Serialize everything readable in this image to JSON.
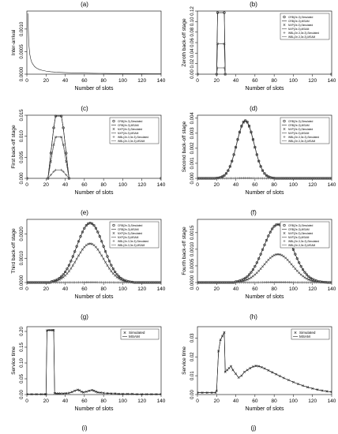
{
  "panel_labels": [
    "(a)",
    "(b)",
    "(c)",
    "(d)",
    "(e)",
    "(f)",
    "(g)",
    "(h)",
    "(i)",
    "(j)"
  ],
  "chart_data": [
    {
      "id": "a",
      "type": "line",
      "xlabel": "Number of slots",
      "ylabel": "Inter-arrival",
      "xlim": [
        0,
        140
      ],
      "ylim": [
        0,
        0.0014
      ],
      "xticks": [
        0,
        20,
        40,
        60,
        80,
        100,
        120,
        140
      ],
      "yticks": [
        0,
        0.0005,
        0.001
      ],
      "yticklabels": [
        "0.0000",
        "0.0005",
        "0.0010"
      ],
      "grid": false,
      "legend": null,
      "series": [
        {
          "x": [
            1,
            2,
            3,
            4,
            5,
            6,
            8,
            10,
            13,
            16,
            20,
            25,
            30,
            40,
            50,
            60,
            70,
            80,
            90,
            100,
            110,
            120,
            130,
            140
          ],
          "y": [
            0.00135,
            0.00068,
            0.00045,
            0.00034,
            0.00027,
            0.00023,
            0.00017,
            0.000135,
            0.000104,
            8.5e-05,
            6.8e-05,
            5.4e-05,
            4.5e-05,
            3.4e-05,
            2.7e-05,
            2.3e-05,
            1.9e-05,
            1.7e-05,
            1.5e-05,
            1.35e-05,
            1.23e-05,
            1.13e-05,
            1.04e-05,
            9.7e-06
          ]
        }
      ]
    },
    {
      "id": "b",
      "type": "line",
      "xlabel": "Number of slots",
      "ylabel": "Zeroth back-off stage",
      "xlim": [
        0,
        140
      ],
      "ylim": [
        0,
        0.12
      ],
      "xticks": [
        0,
        20,
        40,
        60,
        80,
        100,
        120,
        140
      ],
      "yticks": [
        0,
        0.02,
        0.04,
        0.06,
        0.08,
        0.1,
        0.12
      ],
      "yticklabels": [
        "0.00",
        "0.02",
        "0.04",
        "0.06",
        "0.08",
        "0.10",
        "0.12"
      ],
      "grid": false,
      "legend_position": "top-right",
      "categories_x": [
        0,
        20,
        21,
        28,
        29,
        140
      ],
      "series": [
        {
          "name": "CRB(2e-3),Simulated",
          "marker": "circle",
          "y": [
            0,
            0,
            0.117,
            0.117,
            0,
            0
          ]
        },
        {
          "name": "CRB(2e-3),MSAM",
          "marker": "none",
          "y": [
            0,
            0,
            0.117,
            0.117,
            0,
            0
          ]
        },
        {
          "name": "NXP(2e-3),Simulated",
          "marker": "cross",
          "y": [
            0,
            0,
            0.058,
            0.058,
            0,
            0
          ]
        },
        {
          "name": "NXP(2e-3),MSAM",
          "marker": "none",
          "y": [
            0,
            0,
            0.058,
            0.058,
            0,
            0
          ]
        },
        {
          "name": "WBL(2e-3,3e-3),Simulated",
          "marker": "plus",
          "y": [
            0,
            0,
            0.012,
            0.012,
            0,
            0
          ]
        },
        {
          "name": "WBL(2e-3,3e-3),MSAM",
          "marker": "none",
          "y": [
            0,
            0,
            0.012,
            0.012,
            0,
            0
          ]
        }
      ]
    },
    {
      "id": "c",
      "type": "line",
      "xlabel": "Number of slots",
      "ylabel": "First back-off stage",
      "xlim": [
        0,
        140
      ],
      "ylim": [
        0,
        0.015
      ],
      "xticks": [
        0,
        20,
        40,
        60,
        80,
        100,
        120,
        140
      ],
      "yticks": [
        0,
        0.005,
        0.01,
        0.015
      ],
      "yticklabels": [
        "0.000",
        "0.005",
        "0.010",
        "0.015"
      ],
      "grid": false,
      "legend_position": "top-right",
      "categories_x": [
        0,
        22,
        25,
        28,
        30,
        36,
        38,
        41,
        44,
        140
      ],
      "series": [
        {
          "name": "CRB(2e-3),Simulated",
          "marker": "circle",
          "y": [
            0,
            0,
            0.006,
            0.012,
            0.0148,
            0.0148,
            0.012,
            0.006,
            0,
            0
          ]
        },
        {
          "name": "CRB(2e-3),MSAM",
          "marker": "none",
          "y": [
            0,
            0,
            0.006,
            0.012,
            0.0148,
            0.0148,
            0.012,
            0.006,
            0,
            0
          ]
        },
        {
          "name": "NXP(2e-3),Simulated",
          "marker": "cross",
          "y": [
            0,
            0,
            0.004,
            0.008,
            0.0098,
            0.0098,
            0.008,
            0.004,
            0,
            0
          ]
        },
        {
          "name": "NXP(2e-3),MSAM",
          "marker": "none",
          "y": [
            0,
            0,
            0.004,
            0.008,
            0.0098,
            0.0098,
            0.008,
            0.004,
            0,
            0
          ]
        },
        {
          "name": "WBL(2e-3,3e-3),Simulated",
          "marker": "plus",
          "y": [
            0,
            0,
            0.0008,
            0.0016,
            0.002,
            0.002,
            0.0016,
            0.0008,
            0,
            0
          ]
        },
        {
          "name": "WBL(2e-3,3e-3),MSAM",
          "marker": "none",
          "y": [
            0,
            0,
            0.0008,
            0.0016,
            0.002,
            0.002,
            0.0016,
            0.0008,
            0,
            0
          ]
        }
      ]
    },
    {
      "id": "d",
      "type": "line",
      "xlabel": "Number of slots",
      "ylabel": "Second back-off stage",
      "xlim": [
        0,
        140
      ],
      "ylim": [
        0,
        0.0042
      ],
      "xticks": [
        0,
        20,
        40,
        60,
        80,
        100,
        120,
        140
      ],
      "yticks": [
        0,
        0.001,
        0.002,
        0.003,
        0.004
      ],
      "yticklabels": [
        "0.000",
        "0.001",
        "0.002",
        "0.003",
        "0.004"
      ],
      "grid": false,
      "legend_position": "top-right",
      "gauss": {
        "x_from": 20,
        "x_to": 80,
        "center": 50,
        "sigma": 9
      },
      "series": [
        {
          "name": "CRB(2e-3),Simulated",
          "marker": "circle",
          "peak": 0.00385
        },
        {
          "name": "CRB(2e-3),MSAM",
          "marker": "none",
          "peak": 0.00385
        },
        {
          "name": "NXP(2e-3),Simulated",
          "marker": "cross",
          "peak": 0.0038
        },
        {
          "name": "NXP(2e-3),MSAM",
          "marker": "none",
          "peak": 0.0038
        },
        {
          "name": "WBL(2e-3,3e-3),Simulated",
          "marker": "plus",
          "peak": 2e-05
        },
        {
          "name": "WBL(2e-3,3e-3),MSAM",
          "marker": "none",
          "peak": 2e-05
        }
      ]
    },
    {
      "id": "e",
      "type": "line",
      "xlabel": "Number of slots",
      "ylabel": "Third back-off stage",
      "xlim": [
        0,
        140
      ],
      "ylim": [
        0,
        0.0026
      ],
      "xticks": [
        0,
        20,
        40,
        60,
        80,
        100,
        120,
        140
      ],
      "yticks": [
        0,
        0.001,
        0.002
      ],
      "yticklabels": [
        "0.0000",
        "0.0010",
        "0.0020"
      ],
      "grid": false,
      "legend_position": "top-right",
      "gauss": {
        "x_from": 25,
        "x_to": 110,
        "center": 66,
        "sigma": 14
      },
      "series": [
        {
          "name": "CRB(2e-3),Simulated",
          "marker": "circle",
          "peak": 0.00245
        },
        {
          "name": "CRB(2e-3),MSAM",
          "marker": "none",
          "peak": 0.00245
        },
        {
          "name": "NXP(2e-3),Simulated",
          "marker": "cross",
          "peak": 0.0016
        },
        {
          "name": "NXP(2e-3),MSAM",
          "marker": "none",
          "peak": 0.0016
        },
        {
          "name": "WBL(2e-3,3e-3),Simulated",
          "marker": "plus",
          "peak": 1e-05
        },
        {
          "name": "WBL(2e-3,3e-3),MSAM",
          "marker": "none",
          "peak": 1e-05
        }
      ]
    },
    {
      "id": "f",
      "type": "line",
      "xlabel": "Number of slots",
      "ylabel": "Fourth back-off stage",
      "xlim": [
        0,
        140
      ],
      "ylim": [
        0,
        0.0019
      ],
      "xticks": [
        0,
        20,
        40,
        60,
        80,
        100,
        120,
        140
      ],
      "yticks": [
        0,
        0.0005,
        0.001,
        0.0015
      ],
      "yticklabels": [
        "0.0000",
        "0.0005",
        "0.0010",
        "0.0015"
      ],
      "grid": false,
      "legend_position": "top-right",
      "gauss": {
        "x_from": 40,
        "x_to": 135,
        "center": 84,
        "sigma": 15
      },
      "series": [
        {
          "name": "CRB(2e-3),Simulated",
          "marker": "circle",
          "peak": 0.00175
        },
        {
          "name": "CRB(2e-3),MSAM",
          "marker": "none",
          "peak": 0.00175
        },
        {
          "name": "NXP(2e-3),Simulated",
          "marker": "cross",
          "peak": 0.00085
        },
        {
          "name": "NXP(2e-3),MSAM",
          "marker": "none",
          "peak": 0.00085
        },
        {
          "name": "WBL(2e-3,3e-3),Simulated",
          "marker": "plus",
          "peak": 1e-05
        },
        {
          "name": "WBL(2e-3,3e-3),MSAM",
          "marker": "none",
          "peak": 1e-05
        }
      ]
    },
    {
      "id": "g",
      "type": "line",
      "xlabel": "Number of slots",
      "ylabel": "Service time",
      "xlim": [
        0,
        140
      ],
      "ylim": [
        0,
        0.215
      ],
      "xticks": [
        0,
        20,
        40,
        60,
        80,
        100,
        120,
        140
      ],
      "yticks": [
        0,
        0.05,
        0.1,
        0.15,
        0.2
      ],
      "yticklabels": [
        "0.00",
        "0.05",
        "0.10",
        "0.15",
        "0.20"
      ],
      "grid": false,
      "legend_position": "top-right",
      "series": [
        {
          "name": "Simulated",
          "marker": "cross",
          "x": [
            0,
            5,
            10,
            15,
            19,
            20,
            21,
            23,
            25,
            27,
            28,
            29,
            31,
            33,
            35,
            38,
            41,
            44,
            47,
            50,
            53,
            55,
            57,
            59,
            62,
            65,
            68,
            70,
            72,
            74,
            77,
            80,
            84,
            88,
            92,
            96,
            100,
            105,
            110,
            115,
            120,
            125,
            130,
            135,
            140
          ],
          "y": [
            0.001,
            0.001,
            0.001,
            0.001,
            0.001,
            0.001,
            0.203,
            0.204,
            0.204,
            0.204,
            0.204,
            0.004,
            0.003,
            0.003,
            0.003,
            0.003,
            0.004,
            0.005,
            0.008,
            0.012,
            0.015,
            0.013,
            0.009,
            0.007,
            0.009,
            0.012,
            0.014,
            0.012,
            0.009,
            0.007,
            0.006,
            0.005,
            0.004,
            0.003,
            0.003,
            0.002,
            0.002,
            0.002,
            0.002,
            0.001,
            0.001,
            0.001,
            0.001,
            0.001,
            0.001
          ]
        },
        {
          "name": "MSAM",
          "marker": "none",
          "x": [
            0,
            5,
            10,
            15,
            19,
            20,
            21,
            23,
            25,
            27,
            28,
            29,
            31,
            33,
            35,
            38,
            41,
            44,
            47,
            50,
            53,
            55,
            57,
            59,
            62,
            65,
            68,
            70,
            72,
            74,
            77,
            80,
            84,
            88,
            92,
            96,
            100,
            105,
            110,
            115,
            120,
            125,
            130,
            135,
            140
          ],
          "y": [
            0.001,
            0.001,
            0.001,
            0.001,
            0.001,
            0.001,
            0.203,
            0.204,
            0.204,
            0.204,
            0.204,
            0.004,
            0.003,
            0.003,
            0.003,
            0.003,
            0.004,
            0.005,
            0.008,
            0.012,
            0.015,
            0.013,
            0.009,
            0.007,
            0.009,
            0.012,
            0.014,
            0.012,
            0.009,
            0.007,
            0.006,
            0.005,
            0.004,
            0.003,
            0.003,
            0.002,
            0.002,
            0.002,
            0.002,
            0.001,
            0.001,
            0.001,
            0.001,
            0.001,
            0.001
          ]
        }
      ]
    },
    {
      "id": "h",
      "type": "line",
      "xlabel": "Number of slots",
      "ylabel": "Service time",
      "xlim": [
        0,
        140
      ],
      "ylim": [
        0,
        0.036
      ],
      "xticks": [
        0,
        20,
        40,
        60,
        80,
        100,
        120,
        140
      ],
      "yticks": [
        0,
        0.01,
        0.02,
        0.03
      ],
      "yticklabels": [
        "0.00",
        "0.01",
        "0.02",
        "0.03"
      ],
      "grid": false,
      "legend_position": "top-right",
      "series": [
        {
          "name": "Simulated",
          "marker": "cross",
          "x": [
            0,
            5,
            10,
            15,
            19,
            20,
            22,
            24,
            26,
            28,
            29,
            31,
            33,
            35,
            37,
            40,
            43,
            46,
            49,
            52,
            55,
            58,
            61,
            64,
            67,
            70,
            74,
            78,
            82,
            86,
            90,
            95,
            100,
            105,
            110,
            115,
            120,
            125,
            130,
            135,
            140
          ],
          "y": [
            0.001,
            0.001,
            0.001,
            0.001,
            0.001,
            0.002,
            0.023,
            0.029,
            0.031,
            0.033,
            0.012,
            0.013,
            0.014,
            0.015,
            0.013,
            0.011,
            0.009,
            0.01,
            0.012,
            0.013,
            0.014,
            0.0148,
            0.0152,
            0.015,
            0.0145,
            0.0138,
            0.0128,
            0.0118,
            0.0108,
            0.0098,
            0.0088,
            0.0077,
            0.0066,
            0.0056,
            0.0047,
            0.0039,
            0.0032,
            0.0026,
            0.0021,
            0.0017,
            0.0014
          ]
        },
        {
          "name": "MSAM",
          "marker": "none",
          "x": [
            0,
            5,
            10,
            15,
            19,
            20,
            22,
            24,
            26,
            28,
            29,
            31,
            33,
            35,
            37,
            40,
            43,
            46,
            49,
            52,
            55,
            58,
            61,
            64,
            67,
            70,
            74,
            78,
            82,
            86,
            90,
            95,
            100,
            105,
            110,
            115,
            120,
            125,
            130,
            135,
            140
          ],
          "y": [
            0.001,
            0.001,
            0.001,
            0.001,
            0.001,
            0.002,
            0.023,
            0.029,
            0.031,
            0.033,
            0.012,
            0.013,
            0.014,
            0.015,
            0.013,
            0.011,
            0.009,
            0.01,
            0.012,
            0.013,
            0.014,
            0.0148,
            0.0152,
            0.015,
            0.0145,
            0.0138,
            0.0128,
            0.0118,
            0.0108,
            0.0098,
            0.0088,
            0.0077,
            0.0066,
            0.0056,
            0.0047,
            0.0039,
            0.0032,
            0.0026,
            0.0021,
            0.0017,
            0.0014
          ]
        }
      ]
    }
  ]
}
